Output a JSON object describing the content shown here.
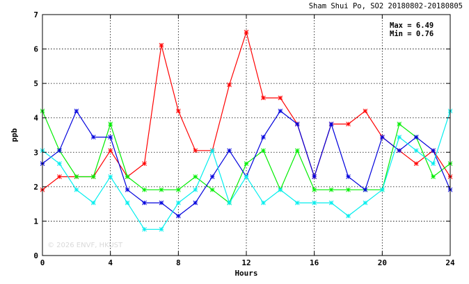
{
  "chart_data": {
    "type": "line",
    "title": "Sham Shui Po, SO2 20180802-20180805",
    "xlabel": "Hours",
    "ylabel": "ppb",
    "xlim": [
      0,
      24
    ],
    "ylim": [
      0,
      7
    ],
    "xticks": [
      0,
      4,
      8,
      12,
      16,
      20,
      24
    ],
    "yticks": [
      0,
      1,
      2,
      3,
      4,
      5,
      6,
      7
    ],
    "grid": true,
    "annotations": [
      "Max = 6.49",
      "Min = 0.76"
    ],
    "watermark": "© 2026  ENVF, HKUST",
    "x": [
      0,
      1,
      2,
      3,
      4,
      5,
      6,
      7,
      8,
      9,
      10,
      11,
      12,
      13,
      14,
      15,
      16,
      17,
      18,
      19,
      20,
      21,
      22,
      23,
      24
    ],
    "series": [
      {
        "color": "#ff0000",
        "values": [
          1.91,
          2.29,
          2.29,
          2.29,
          3.05,
          2.29,
          2.67,
          6.11,
          4.2,
          3.05,
          3.05,
          4.96,
          6.49,
          4.58,
          4.58,
          3.82,
          2.29,
          3.82,
          3.82,
          4.2,
          3.44,
          3.05,
          2.67,
          3.05,
          2.29
        ]
      },
      {
        "color": "#00ee00",
        "values": [
          4.2,
          3.05,
          2.29,
          2.29,
          3.82,
          2.29,
          1.91,
          1.91,
          1.91,
          2.29,
          1.91,
          1.53,
          2.67,
          3.05,
          1.91,
          3.05,
          1.91,
          1.91,
          1.91,
          1.91,
          1.91,
          3.82,
          3.44,
          2.29,
          2.67
        ]
      },
      {
        "color": "#0000dd",
        "values": [
          2.67,
          3.05,
          4.2,
          3.44,
          3.44,
          1.91,
          1.53,
          1.53,
          1.15,
          1.53,
          2.29,
          3.05,
          2.29,
          3.44,
          4.2,
          3.82,
          2.29,
          3.82,
          2.29,
          1.91,
          3.44,
          3.05,
          3.44,
          3.05,
          1.91
        ]
      },
      {
        "color": "#00eeee",
        "values": [
          3.05,
          2.67,
          1.91,
          1.53,
          2.29,
          1.53,
          0.76,
          0.76,
          1.53,
          1.91,
          3.05,
          1.53,
          2.29,
          1.53,
          1.91,
          1.53,
          1.53,
          1.53,
          1.15,
          1.53,
          1.91,
          3.44,
          3.05,
          2.67,
          4.2
        ]
      }
    ]
  }
}
